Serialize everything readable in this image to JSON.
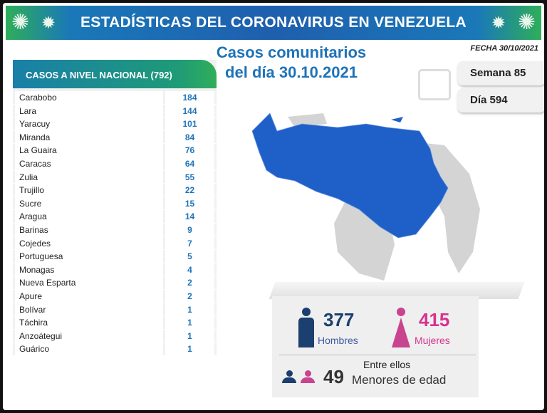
{
  "header": {
    "title": "ESTADÍSTICAS DEL CORONAVIRUS EN VENEZUELA"
  },
  "subtitle": {
    "line1": "Casos comunitarios",
    "line2": "del día 30.10.2021"
  },
  "fecha": "FECHA 30/10/2021",
  "semana": "Semana 85",
  "dia": "Día 594",
  "table": {
    "title": "CASOS A NIVEL NACIONAL  (792)",
    "rows": [
      {
        "state": "Carabobo",
        "cases": "184"
      },
      {
        "state": "Lara",
        "cases": "144"
      },
      {
        "state": "Yaracuy",
        "cases": "101"
      },
      {
        "state": "Miranda",
        "cases": "84"
      },
      {
        "state": "La Guaira",
        "cases": "76"
      },
      {
        "state": "Caracas",
        "cases": "64"
      },
      {
        "state": "Zulia",
        "cases": "55"
      },
      {
        "state": "Trujillo",
        "cases": "22"
      },
      {
        "state": "Sucre",
        "cases": "15"
      },
      {
        "state": "Aragua",
        "cases": "14"
      },
      {
        "state": "Barinas",
        "cases": "9"
      },
      {
        "state": "Cojedes",
        "cases": "7"
      },
      {
        "state": "Portuguesa",
        "cases": "5"
      },
      {
        "state": "Monagas",
        "cases": "4"
      },
      {
        "state": "Nueva Esparta",
        "cases": "2"
      },
      {
        "state": "Apure",
        "cases": "2"
      },
      {
        "state": "Bolívar",
        "cases": "1"
      },
      {
        "state": "Táchira",
        "cases": "1"
      },
      {
        "state": "Anzoátegui",
        "cases": "1"
      },
      {
        "state": "Guárico",
        "cases": "1"
      }
    ]
  },
  "stats": {
    "men": "377",
    "men_label": "Hombres",
    "women": "415",
    "women_label": "Mujeres",
    "among": "Entre ellos",
    "minors": "49",
    "minors_label": "Menores de edad"
  },
  "colors": {
    "blue": "#1e73b8",
    "men": "#1b3f6e",
    "women": "#d6338f",
    "map_affected": "#1f5fc8",
    "map_none": "#d4d4d4"
  }
}
